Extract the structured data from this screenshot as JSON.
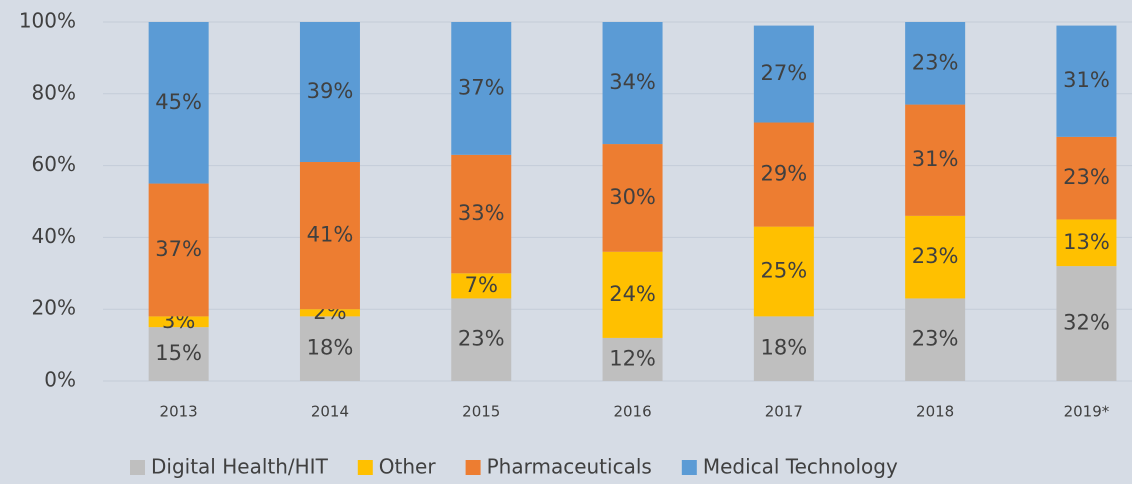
{
  "chart_data": {
    "type": "stacked_bar",
    "categories": [
      "2013",
      "2014",
      "2015",
      "2016",
      "2017",
      "2018",
      "2019*"
    ],
    "series": [
      {
        "name": "Digital Health/HIT",
        "color": "#bfbfbf",
        "values": [
          15,
          18,
          23,
          12,
          18,
          23,
          32
        ],
        "value_labels": [
          "15%",
          "18%",
          "23%",
          "12%",
          "18%",
          "23%",
          "32%"
        ]
      },
      {
        "name": "Other",
        "color": "#ffc000",
        "values": [
          3,
          2,
          7,
          24,
          25,
          23,
          13
        ],
        "value_labels": [
          "3%",
          "2%",
          "7%",
          "24%",
          "25%",
          "23%",
          "13%"
        ]
      },
      {
        "name": "Pharmaceuticals",
        "color": "#ed7d31",
        "values": [
          37,
          41,
          33,
          30,
          29,
          31,
          23
        ],
        "value_labels": [
          "37%",
          "41%",
          "33%",
          "30%",
          "29%",
          "31%",
          "23%"
        ]
      },
      {
        "name": "Medical Technology",
        "color": "#5b9bd5",
        "values": [
          45,
          39,
          37,
          34,
          27,
          23,
          31
        ],
        "value_labels": [
          "45%",
          "39%",
          "37%",
          "34%",
          "27%",
          "23%",
          "31%"
        ]
      }
    ],
    "ylim": [
      0,
      100
    ],
    "yticks": [
      {
        "value": 0,
        "label": "0%"
      },
      {
        "value": 20,
        "label": "20%"
      },
      {
        "value": 40,
        "label": "40%"
      },
      {
        "value": 60,
        "label": "60%"
      },
      {
        "value": 80,
        "label": "80%"
      },
      {
        "value": 100,
        "label": "100%"
      }
    ],
    "grid": true,
    "legend": "bottom"
  }
}
